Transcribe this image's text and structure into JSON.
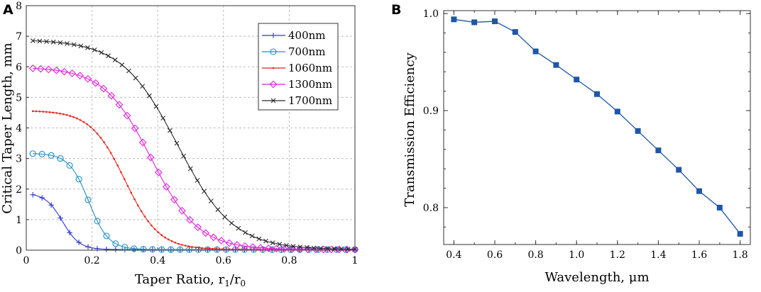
{
  "panels": {
    "a": "A",
    "b": "B"
  },
  "chart_data": [
    {
      "type": "line",
      "xlabel": "Taper Ratio, r",
      "xlabel_sub1": "1",
      "xlabel_mid": "/r",
      "xlabel_sub0": "0",
      "ylabel": "Critical Taper Length, mm",
      "xlim": [
        0,
        1
      ],
      "ylim": [
        0,
        8
      ],
      "xticks": [
        0,
        0.2,
        0.4,
        0.6,
        0.8,
        1
      ],
      "xtick_labels": [
        "0",
        "0.2",
        "0.4",
        "0.6",
        "0.8",
        "1"
      ],
      "yticks": [
        0,
        1,
        2,
        3,
        4,
        5,
        6,
        7,
        8
      ],
      "ytick_labels": [
        "0",
        "1",
        "2",
        "3",
        "4",
        "5",
        "6",
        "7",
        "8"
      ],
      "grid": "dashed",
      "legend_position": "top-right",
      "series": [
        {
          "name": "400nm",
          "color": "#2b35d4",
          "marker": "plus",
          "y0": 1.85,
          "x0": 0.11,
          "k": 0.026,
          "n": 36
        },
        {
          "name": "700nm",
          "color": "#1f8fc4",
          "marker": "circle",
          "y0": 3.15,
          "x0": 0.19,
          "k": 0.03,
          "n": 36
        },
        {
          "name": "1060nm",
          "color": "#e8251a",
          "marker": "dot",
          "y0": 4.55,
          "x0": 0.3,
          "k": 0.052,
          "n": 96
        },
        {
          "name": "1300nm",
          "color": "#e020e0",
          "marker": "diamond",
          "y0": 5.97,
          "x0": 0.38,
          "k": 0.072,
          "n": 42
        },
        {
          "name": "1700nm",
          "color": "#2a2a2a",
          "marker": "cross",
          "y0": 6.87,
          "x0": 0.46,
          "k": 0.085,
          "n": 48
        }
      ]
    },
    {
      "type": "line",
      "xlabel": "Wavelength, μm",
      "ylabel": "Transmission Efficiency",
      "xlim": [
        0.35,
        1.85
      ],
      "ylim": [
        0.762,
        1.003
      ],
      "xticks": [
        0.4,
        0.6,
        0.8,
        1.0,
        1.2,
        1.4,
        1.6,
        1.8
      ],
      "xtick_labels": [
        "0.4",
        "0.6",
        "0.8",
        "1.0",
        "1.2",
        "1.4",
        "1.6",
        "1.8"
      ],
      "yticks": [
        0.8,
        0.9,
        1.0
      ],
      "ytick_labels": [
        "0.8",
        "0.9",
        "1.0"
      ],
      "color": "#1e56a8",
      "series": [
        {
          "name": "Transmission Efficiency",
          "x": [
            0.4,
            0.5,
            0.6,
            0.7,
            0.8,
            0.9,
            1.0,
            1.1,
            1.2,
            1.3,
            1.4,
            1.5,
            1.6,
            1.7,
            1.8
          ],
          "y": [
            0.994,
            0.991,
            0.992,
            0.981,
            0.961,
            0.947,
            0.932,
            0.917,
            0.899,
            0.879,
            0.859,
            0.839,
            0.817,
            0.8,
            0.773
          ]
        }
      ]
    }
  ]
}
